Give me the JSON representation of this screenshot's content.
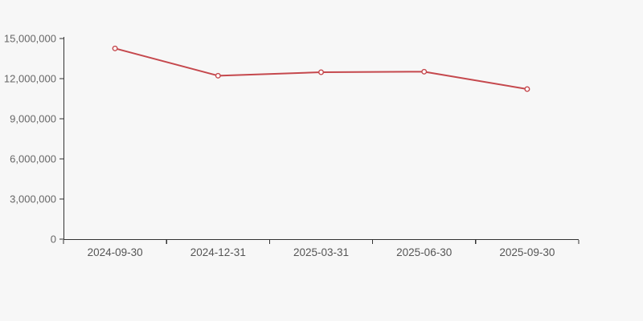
{
  "chart": {
    "background_color": "#f7f7f7",
    "axis_color": "#333333",
    "y_label_color": "#666666",
    "x_label_color": "#555555",
    "line_color": "#c5484d",
    "marker_fill": "#ffffff"
  },
  "chart_data": {
    "type": "line",
    "title": "",
    "xlabel": "",
    "ylabel": "",
    "categories": [
      "2024-09-30",
      "2024-12-31",
      "2025-03-31",
      "2025-06-30",
      "2025-09-30"
    ],
    "series": [
      {
        "name": "series-1",
        "values": [
          14260000,
          12220000,
          12480000,
          12520000,
          11220000
        ]
      }
    ],
    "ylim": [
      0,
      15000000
    ],
    "ytick_step": 3000000,
    "ytick_labels": [
      "0",
      "3,000,000",
      "6,000,000",
      "9,000,000",
      "12,000,000",
      "15,000,000"
    ],
    "grid": false,
    "legend_position": "none"
  }
}
